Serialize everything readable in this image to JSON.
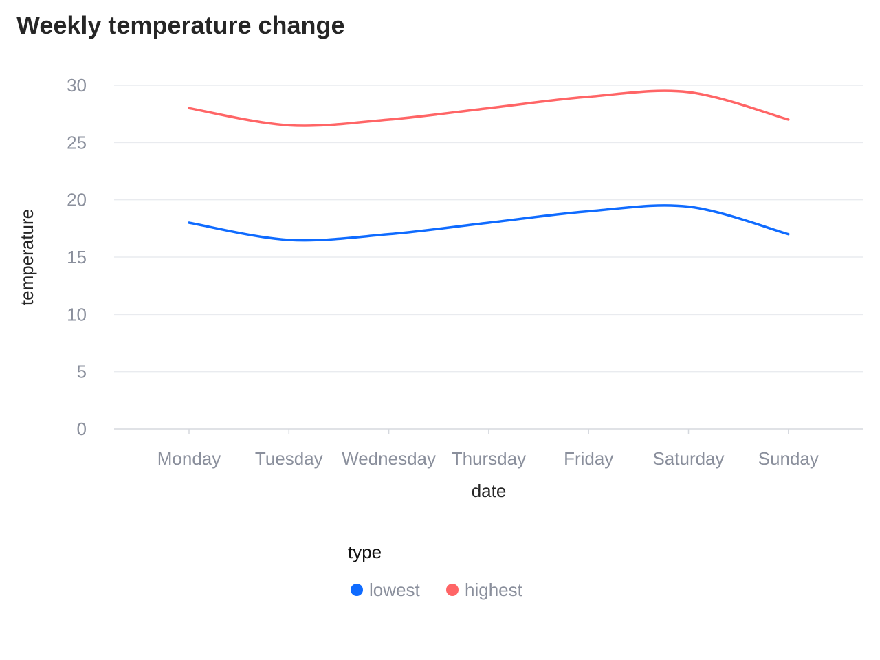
{
  "chart_data": {
    "type": "line",
    "title": "Weekly temperature change",
    "xlabel": "date",
    "ylabel": "temperature",
    "categories": [
      "Monday",
      "Tuesday",
      "Wednesday",
      "Thursday",
      "Friday",
      "Saturday",
      "Sunday"
    ],
    "series": [
      {
        "name": "lowest",
        "color": "#0f6bff",
        "values": [
          18,
          16.5,
          17,
          18,
          19,
          19.4,
          17
        ]
      },
      {
        "name": "highest",
        "color": "#ff6566",
        "values": [
          28,
          26.5,
          27,
          28,
          29,
          29.4,
          27
        ]
      }
    ],
    "ylim": [
      0,
      30
    ],
    "yticks": [
      0,
      5,
      10,
      15,
      20,
      25,
      30
    ],
    "grid": true,
    "smooth": true,
    "legend": {
      "title": "type",
      "position": "bottom"
    }
  }
}
